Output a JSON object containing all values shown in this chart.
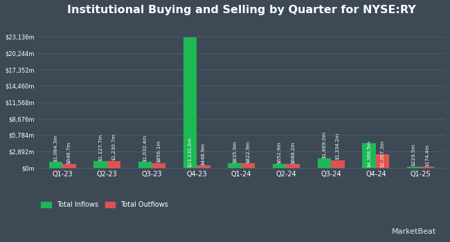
{
  "title": "Institutional Buying and Selling by Quarter for NYSE:RY",
  "quarters": [
    "Q1-23",
    "Q2-23",
    "Q3-23",
    "Q4-23",
    "Q1-24",
    "Q2-24",
    "Q3-24",
    "Q4-24",
    "Q1-25"
  ],
  "inflows": [
    1064.3,
    1127.7,
    1032.4,
    23131.0,
    835.9,
    652.9,
    1669.0,
    4368.5,
    229.5
  ],
  "outflows": [
    646.7,
    1230.7,
    856.1,
    448.9,
    822.9,
    688.2,
    1334.2,
    2367.3,
    174.4
  ],
  "inflow_labels": [
    "$1,064.3m",
    "$1,127.7m",
    "$1,032.4m",
    "$23,131.0m",
    "$835.9m",
    "$652.9m",
    "$1,669.0m",
    "$4,368.5m",
    "$229.5m"
  ],
  "outflow_labels": [
    "$646.7m",
    "$1,230.7m",
    "$856.1m",
    "$448.9m",
    "$822.9m",
    "$688.2m",
    "$1,334.2m",
    "$2,367.3m",
    "$174.4m"
  ],
  "ytick_labels": [
    "$0m",
    "$2,892m",
    "$5,784m",
    "$8,676m",
    "$11,568m",
    "$14,460m",
    "$17,352m",
    "$20,244m",
    "$23,136m"
  ],
  "ytick_values": [
    0,
    2892,
    5784,
    8676,
    11568,
    14460,
    17352,
    20244,
    23136
  ],
  "ylim": [
    0,
    26000
  ],
  "bar_width": 0.3,
  "inflow_color": "#1db954",
  "outflow_color": "#e05252",
  "bg_color": "#3d4a56",
  "plot_bg_color": "#3d4a56",
  "grid_color": "#4e5d6b",
  "text_color": "#ffffff",
  "legend_inflow": "Total Inflows",
  "legend_outflow": "Total Outflows",
  "title_fontsize": 11.5,
  "label_fontsize": 5.2,
  "tick_fontsize": 6.0,
  "xtick_fontsize": 7.0,
  "watermark": "MarketBeat"
}
